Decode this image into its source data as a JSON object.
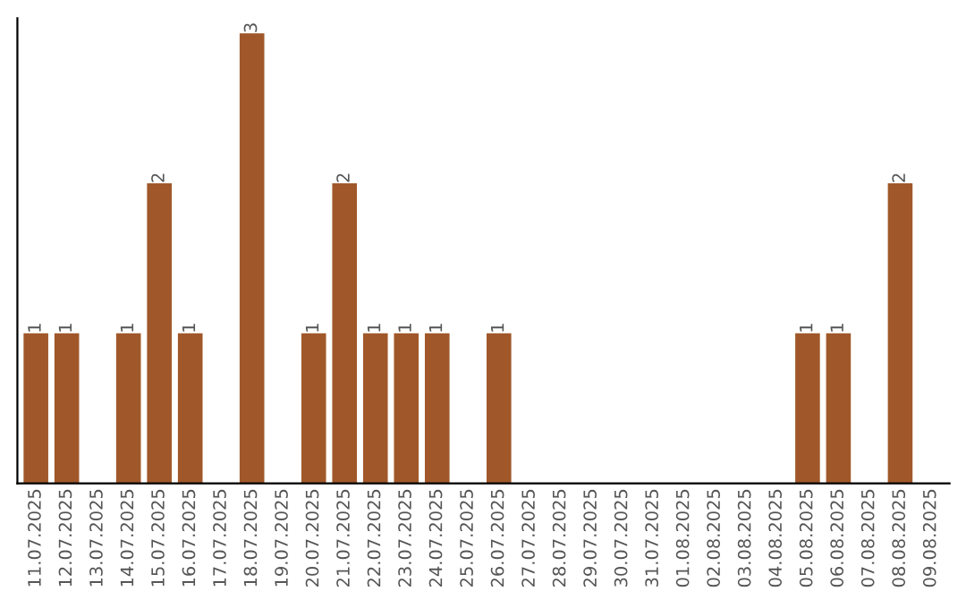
{
  "chart_data": {
    "type": "bar",
    "categories": [
      "11.07.2025",
      "12.07.2025",
      "13.07.2025",
      "14.07.2025",
      "15.07.2025",
      "16.07.2025",
      "17.07.2025",
      "18.07.2025",
      "19.07.2025",
      "20.07.2025",
      "21.07.2025",
      "22.07.2025",
      "23.07.2025",
      "24.07.2025",
      "25.07.2025",
      "26.07.2025",
      "27.07.2025",
      "28.07.2025",
      "29.07.2025",
      "30.07.2025",
      "31.07.2025",
      "01.08.2025",
      "02.08.2025",
      "03.08.2025",
      "04.08.2025",
      "05.08.2025",
      "06.08.2025",
      "07.08.2025",
      "08.08.2025",
      "09.08.2025"
    ],
    "values": [
      1,
      1,
      0,
      1,
      2,
      1,
      0,
      3,
      0,
      1,
      2,
      1,
      1,
      1,
      0,
      1,
      0,
      0,
      0,
      0,
      0,
      0,
      0,
      0,
      0,
      1,
      1,
      0,
      2,
      0
    ],
    "value_labels": [
      "1",
      "1",
      null,
      "1",
      "2",
      "1",
      null,
      "3",
      null,
      "1",
      "2",
      "1",
      "1",
      "1",
      null,
      "1",
      null,
      null,
      null,
      null,
      null,
      null,
      null,
      null,
      null,
      "1",
      "1",
      null,
      "2",
      null
    ],
    "color": "#a0582a",
    "ylim": [
      0,
      3.1
    ],
    "tick_labels": "x",
    "grid": false,
    "legend": false
  }
}
